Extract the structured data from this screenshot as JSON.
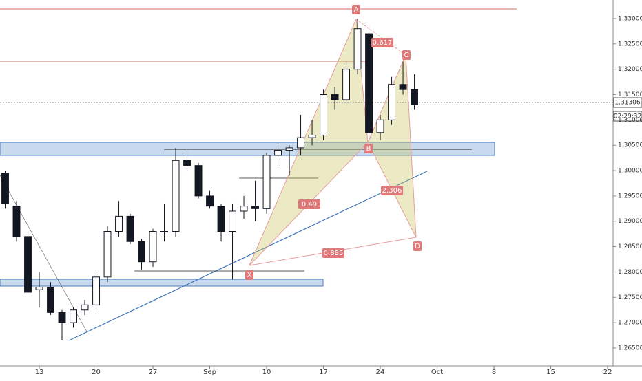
{
  "chart_data": {
    "type": "candlestick",
    "x": [
      2,
      3,
      4,
      5,
      6,
      7,
      8,
      9,
      10,
      11,
      12,
      13,
      14,
      15,
      16,
      17,
      18,
      19,
      20,
      21,
      22,
      23,
      24,
      25,
      26,
      27,
      28,
      29,
      30,
      31,
      32,
      33,
      34,
      35,
      36,
      37,
      38
    ],
    "open": [
      1.2995,
      1.293,
      1.287,
      1.2765,
      1.277,
      1.272,
      1.27,
      1.2725,
      1.2735,
      1.279,
      1.288,
      1.291,
      1.286,
      1.282,
      1.288,
      1.288,
      1.302,
      1.301,
      1.295,
      1.293,
      1.288,
      1.292,
      1.293,
      1.2925,
      1.303,
      1.304,
      1.3045,
      1.3065,
      1.307,
      1.315,
      1.314,
      1.32,
      1.327,
      1.3075,
      1.31,
      1.317,
      1.316
    ],
    "high": [
      1.3,
      1.294,
      1.2875,
      1.28,
      1.278,
      1.2725,
      1.273,
      1.2745,
      1.2795,
      1.289,
      1.294,
      1.2915,
      1.2865,
      1.2885,
      1.2935,
      1.3045,
      1.304,
      1.3015,
      1.296,
      1.2935,
      1.2935,
      1.295,
      1.298,
      1.3035,
      1.305,
      1.305,
      1.311,
      1.31,
      1.316,
      1.3165,
      1.3215,
      1.33,
      1.3285,
      1.311,
      1.3185,
      1.3215,
      1.319
    ],
    "low": [
      1.2925,
      1.286,
      1.2755,
      1.273,
      1.2715,
      1.2665,
      1.269,
      1.2715,
      1.2725,
      1.278,
      1.287,
      1.2855,
      1.2805,
      1.281,
      1.286,
      1.287,
      1.3,
      1.2945,
      1.2925,
      1.286,
      1.2785,
      1.2905,
      1.29,
      1.2915,
      1.301,
      1.299,
      1.303,
      1.305,
      1.306,
      1.312,
      1.313,
      1.319,
      1.306,
      1.306,
      1.309,
      1.315,
      1.312
    ],
    "close": [
      1.2935,
      1.287,
      1.276,
      1.277,
      1.272,
      1.27,
      1.2725,
      1.2735,
      1.279,
      1.288,
      1.291,
      1.286,
      1.282,
      1.288,
      1.288,
      1.302,
      1.301,
      1.295,
      1.293,
      1.288,
      1.292,
      1.293,
      1.2925,
      1.303,
      1.304,
      1.3045,
      1.3065,
      1.307,
      1.315,
      1.314,
      1.32,
      1.328,
      1.3075,
      1.31,
      1.317,
      1.316,
      1.313
    ],
    "up_color": "#ffffff",
    "down_color": "#131722",
    "xlim": [
      1.545,
      55.48
    ],
    "xticks": [
      {
        "value": 5,
        "label": "13"
      },
      {
        "value": 10,
        "label": "20"
      },
      {
        "value": 15,
        "label": "27"
      },
      {
        "value": 20,
        "label": "Sep"
      },
      {
        "value": 25,
        "label": "10"
      },
      {
        "value": 30,
        "label": "17"
      },
      {
        "value": 35,
        "label": "24"
      },
      {
        "value": 40,
        "label": "Oct"
      },
      {
        "value": 45,
        "label": "8"
      },
      {
        "value": 50,
        "label": "15"
      },
      {
        "value": 55,
        "label": "22"
      }
    ],
    "ylim": [
      1.26147,
      1.33366
    ],
    "yticks": [
      {
        "value": 1.265,
        "label": "1.26500"
      },
      {
        "value": 1.27,
        "label": "1.27000"
      },
      {
        "value": 1.275,
        "label": "1.27500"
      },
      {
        "value": 1.28,
        "label": "1.28000"
      },
      {
        "value": 1.285,
        "label": "1.28500"
      },
      {
        "value": 1.29,
        "label": "1.29000"
      },
      {
        "value": 1.295,
        "label": "1.29500"
      },
      {
        "value": 1.3,
        "label": "1.30000"
      },
      {
        "value": 1.305,
        "label": "1.30500"
      },
      {
        "value": 1.31,
        "label": "1.31000"
      },
      {
        "value": 1.315,
        "label": "1.31500"
      },
      {
        "value": 1.32,
        "label": "1.32000"
      },
      {
        "value": 1.325,
        "label": "1.32500"
      },
      {
        "value": 1.33,
        "label": "1.33000"
      }
    ],
    "last_price": 1.31306,
    "countdown": "02:29:32",
    "pattern": {
      "points": [
        "X",
        "A",
        "B",
        "C",
        "D"
      ],
      "ratios": [
        "0.617",
        "0.49",
        "2.306",
        "0.885"
      ]
    }
  }
}
